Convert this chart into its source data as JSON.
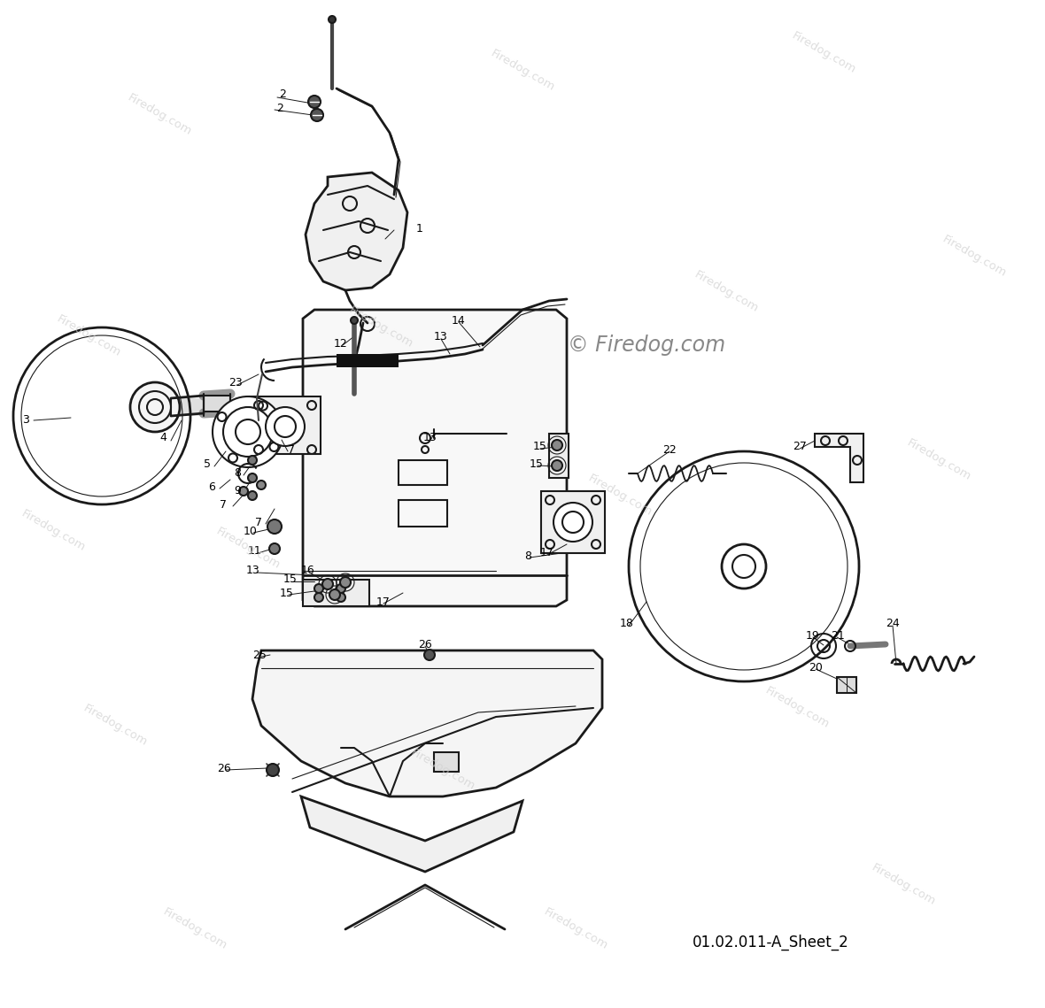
{
  "bg_color": "#ffffff",
  "line_color": "#1a1a1a",
  "watermark_color": "#d0d0d0",
  "watermark_text": "Firedog.com",
  "sheet_id": "01.02.011-A_Sheet_2",
  "copyright_text": "© Firedog.com",
  "copyright_color": "#333333",
  "fw": 1180,
  "fh": 1139
}
